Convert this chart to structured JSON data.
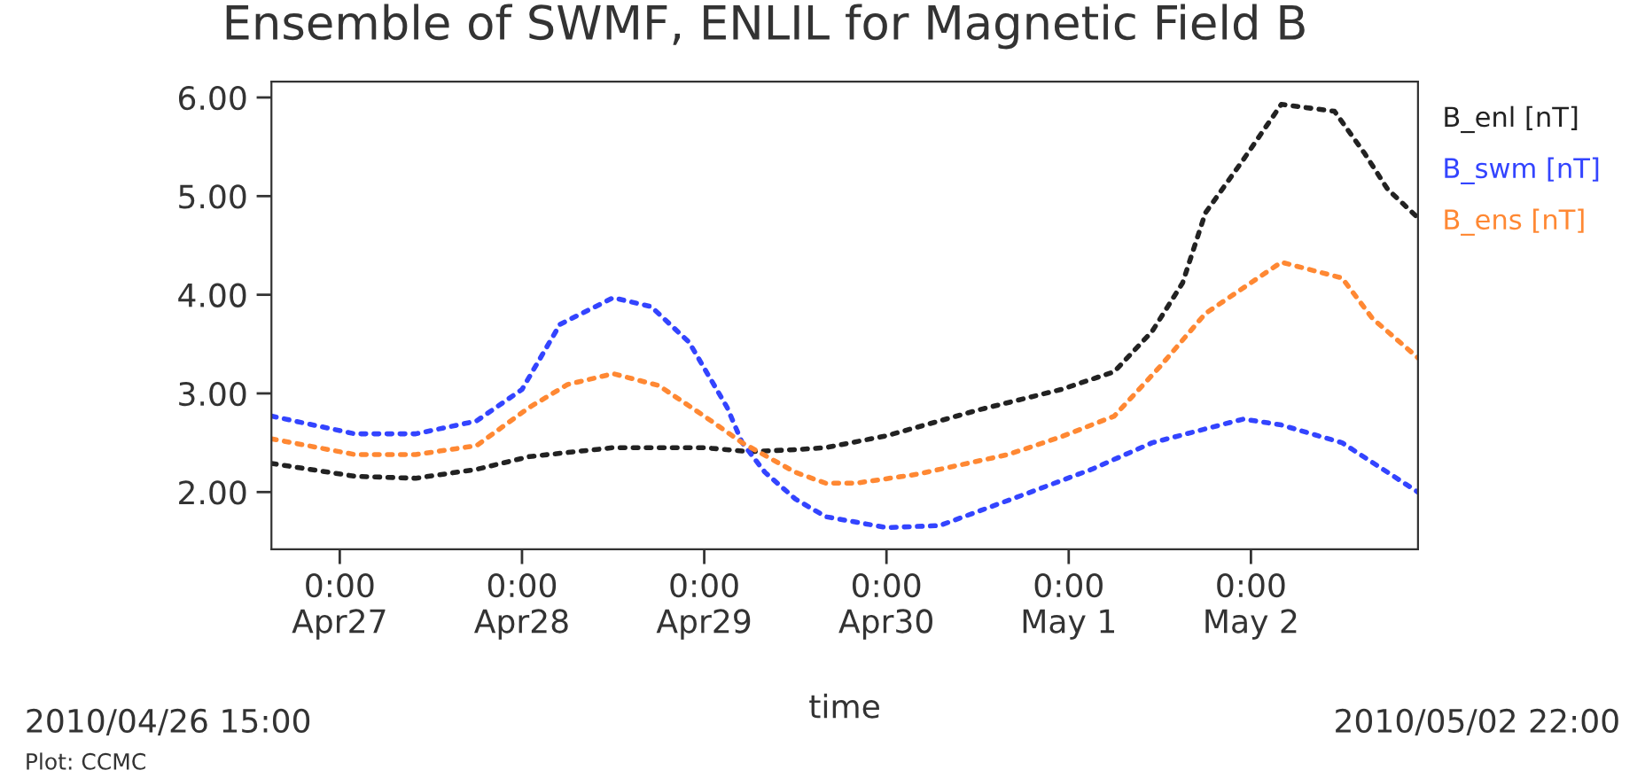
{
  "chart_data": {
    "type": "line",
    "title": "Ensemble of SWMF, ENLIL for Magnetic Field B",
    "xlabel": "time",
    "annotations": [
      "2010/04/26 15:00",
      "2010/05/02 22:00",
      "Plot: CCMC"
    ],
    "series": [
      {
        "name": "B_enl [nT]",
        "color": "#222222",
        "x": [
          "2010-04-26T15:00",
          "2010-04-27T02:00",
          "2010-04-27T10:00",
          "2010-04-27T18:00",
          "2010-04-28T01:00",
          "2010-04-28T12:00",
          "2010-04-29T00:00",
          "2010-04-29T06:00",
          "2010-04-29T12:00",
          "2010-04-29T16:00",
          "2010-04-30T00:00",
          "2010-04-30T12:00",
          "2010-04-30T23:00",
          "2010-05-01T06:00",
          "2010-05-01T11:00",
          "2010-05-01T15:00",
          "2010-05-01T18:00",
          "2010-05-01T23:00",
          "2010-05-02T04:00",
          "2010-05-02T11:00",
          "2010-05-02T15:00",
          "2010-05-02T18:00",
          "2010-05-02T22:00"
        ],
        "values": [
          2.29,
          2.16,
          2.14,
          2.23,
          2.36,
          2.45,
          2.45,
          2.41,
          2.43,
          2.45,
          2.57,
          2.83,
          3.04,
          3.22,
          3.63,
          4.12,
          4.83,
          5.37,
          5.93,
          5.86,
          5.43,
          5.07,
          4.78
        ]
      },
      {
        "name": "B_swm [nT]",
        "color": "#3344ff",
        "x": [
          "2010-04-26T15:00",
          "2010-04-27T02:00",
          "2010-04-27T10:00",
          "2010-04-27T18:00",
          "2010-04-28T00:00",
          "2010-04-28T05:00",
          "2010-04-28T12:00",
          "2010-04-28T17:00",
          "2010-04-28T22:00",
          "2010-04-29T03:00",
          "2010-04-29T05:00",
          "2010-04-29T08:00",
          "2010-04-29T12:00",
          "2010-04-29T16:00",
          "2010-04-30T00:00",
          "2010-04-30T07:00",
          "2010-04-30T19:00",
          "2010-05-01T03:00",
          "2010-05-01T11:00",
          "2010-05-01T23:00",
          "2010-05-02T04:00",
          "2010-05-02T12:00",
          "2010-05-02T22:00"
        ],
        "values": [
          2.77,
          2.59,
          2.59,
          2.72,
          3.04,
          3.7,
          3.97,
          3.88,
          3.52,
          2.86,
          2.5,
          2.2,
          1.93,
          1.75,
          1.64,
          1.66,
          2.0,
          2.23,
          2.5,
          2.74,
          2.68,
          2.5,
          2.0
        ]
      },
      {
        "name": "B_ens [nT]",
        "color": "#ff8833",
        "x": [
          "2010-04-26T15:00",
          "2010-04-27T02:00",
          "2010-04-27T10:00",
          "2010-04-27T18:00",
          "2010-04-28T01:00",
          "2010-04-28T06:00",
          "2010-04-28T12:00",
          "2010-04-28T18:00",
          "2010-04-29T00:00",
          "2010-04-29T05:00",
          "2010-04-29T12:00",
          "2010-04-29T16:00",
          "2010-04-29T20:00",
          "2010-04-30T04:00",
          "2010-04-30T16:00",
          "2010-04-30T23:00",
          "2010-05-01T06:00",
          "2010-05-01T12:00",
          "2010-05-01T18:00",
          "2010-05-02T04:00",
          "2010-05-02T12:00",
          "2010-05-02T16:00",
          "2010-05-02T22:00"
        ],
        "values": [
          2.54,
          2.38,
          2.38,
          2.47,
          2.86,
          3.09,
          3.2,
          3.08,
          2.77,
          2.5,
          2.2,
          2.09,
          2.09,
          2.18,
          2.38,
          2.56,
          2.77,
          3.27,
          3.81,
          4.33,
          4.17,
          3.76,
          3.36
        ]
      }
    ],
    "xlim": [
      "2010-04-26T15:00",
      "2010-05-02T22:00"
    ],
    "xticks": [
      {
        "value": "2010-04-27",
        "label": "0:00\nApr27"
      },
      {
        "value": "2010-04-28",
        "label": "0:00\nApr28"
      },
      {
        "value": "2010-04-29",
        "label": "0:00\nApr29"
      },
      {
        "value": "2010-04-30",
        "label": "0:00\nApr30"
      },
      {
        "value": "2010-05-01",
        "label": "0:00\nMay 1"
      },
      {
        "value": "2010-05-02",
        "label": "0:00\nMay 2"
      }
    ],
    "ylim": [
      1.42,
      6.16
    ],
    "yticks": [
      {
        "value": 2,
        "label": "2.00"
      },
      {
        "value": 3,
        "label": "3.00"
      },
      {
        "value": 4,
        "label": "4.00"
      },
      {
        "value": 5,
        "label": "5.00"
      },
      {
        "value": 6,
        "label": "6.00"
      }
    ],
    "legend": "right",
    "line_style": "dotted",
    "grid": false
  }
}
